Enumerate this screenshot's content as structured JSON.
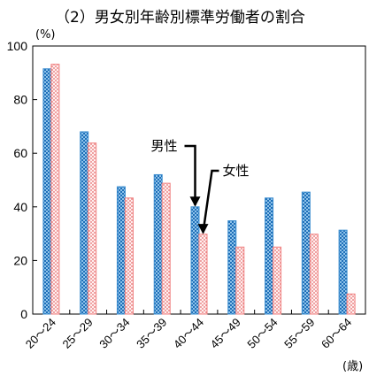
{
  "chart_data": {
    "type": "bar",
    "title": "（2）男女別年齢別標準労働者の割合",
    "y_unit": "(%)",
    "x_unit": "(歳)",
    "ylim": [
      0,
      100
    ],
    "y_ticks": [
      "0",
      "20",
      "40",
      "60",
      "80",
      "100"
    ],
    "categories": [
      "20～24",
      "25～29",
      "30～34",
      "35～39",
      "40～44",
      "45～49",
      "50～54",
      "55～59",
      "60～64"
    ],
    "series": [
      {
        "name": "男性",
        "values": [
          91.5,
          68,
          47.5,
          52,
          40,
          34.8,
          43.3,
          45.5,
          31.3
        ],
        "color": "#3a8ccf",
        "pattern": "checker"
      },
      {
        "name": "女性",
        "values": [
          93.2,
          63.8,
          43.3,
          48.8,
          29.8,
          25,
          25,
          29.8,
          7.5
        ],
        "color": "#f08080",
        "pattern": "dots"
      }
    ],
    "grid": false,
    "annotations": [
      {
        "text": "男性",
        "target_series": 0,
        "target_category": "40～44"
      },
      {
        "text": "女性",
        "target_series": 1,
        "target_category": "40～44"
      }
    ]
  }
}
